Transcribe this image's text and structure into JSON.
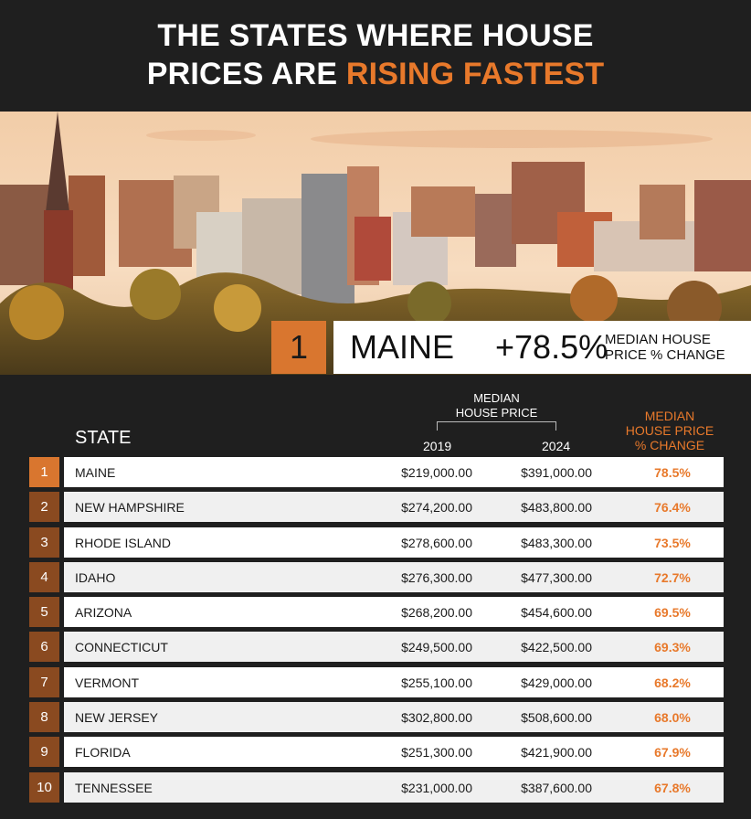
{
  "title": {
    "line1": "THE STATES WHERE HOUSE",
    "line2_prefix": "PRICES ARE ",
    "line2_accent": "RISING FASTEST"
  },
  "colors": {
    "accent": "#e8792b",
    "rank_first": "#d9762f",
    "rank_other": "#8a4a20",
    "background": "#1f1f1f"
  },
  "banner": {
    "rank": "1",
    "state": "MAINE",
    "pct": "+78.5%",
    "caption_line1": "MEDIAN HOUSE",
    "caption_line2": "PRICE % CHANGE"
  },
  "table": {
    "header_state": "STATE",
    "header_median_line1": "MEDIAN",
    "header_median_line2": "HOUSE PRICE",
    "header_2019": "2019",
    "header_2024": "2024",
    "header_change_line1": "MEDIAN",
    "header_change_line2": "HOUSE PRICE",
    "header_change_line3": "% CHANGE",
    "rows": [
      {
        "rank": "1",
        "state": "MAINE",
        "p2019": "$219,000.00",
        "p2024": "$391,000.00",
        "change": "78.5%"
      },
      {
        "rank": "2",
        "state": "NEW HAMPSHIRE",
        "p2019": "$274,200.00",
        "p2024": "$483,800.00",
        "change": "76.4%"
      },
      {
        "rank": "3",
        "state": "RHODE ISLAND",
        "p2019": "$278,600.00",
        "p2024": "$483,300.00",
        "change": "73.5%"
      },
      {
        "rank": "4",
        "state": "IDAHO",
        "p2019": "$276,300.00",
        "p2024": "$477,300.00",
        "change": "72.7%"
      },
      {
        "rank": "5",
        "state": "ARIZONA",
        "p2019": "$268,200.00",
        "p2024": "$454,600.00",
        "change": "69.5%"
      },
      {
        "rank": "6",
        "state": "CONNECTICUT",
        "p2019": "$249,500.00",
        "p2024": "$422,500.00",
        "change": "69.3%"
      },
      {
        "rank": "7",
        "state": "VERMONT",
        "p2019": "$255,100.00",
        "p2024": "$429,000.00",
        "change": "68.2%"
      },
      {
        "rank": "8",
        "state": "NEW JERSEY",
        "p2019": "$302,800.00",
        "p2024": "$508,600.00",
        "change": "68.0%"
      },
      {
        "rank": "9",
        "state": "FLORIDA",
        "p2019": "$251,300.00",
        "p2024": "$421,900.00",
        "change": "67.9%"
      },
      {
        "rank": "10",
        "state": "TENNESSEE",
        "p2019": "$231,000.00",
        "p2024": "$387,600.00",
        "change": "67.8%"
      }
    ]
  }
}
